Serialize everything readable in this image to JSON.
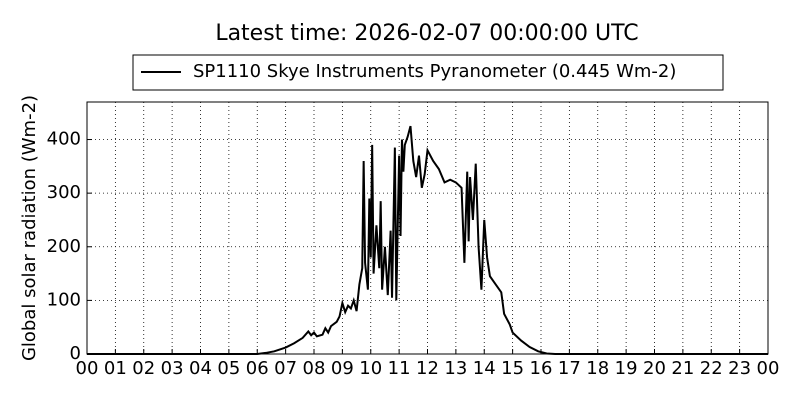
{
  "chart_data": {
    "type": "line",
    "title": "Latest time: 2026-02-07 00:00:00 UTC",
    "y_label": "Global solar radiation (Wm-2)",
    "xlim": [
      0,
      24
    ],
    "ylim": [
      0,
      470
    ],
    "xticks": [
      {
        "value": 0,
        "label": "00"
      },
      {
        "value": 1,
        "label": "01"
      },
      {
        "value": 2,
        "label": "02"
      },
      {
        "value": 3,
        "label": "03"
      },
      {
        "value": 4,
        "label": "04"
      },
      {
        "value": 5,
        "label": "05"
      },
      {
        "value": 6,
        "label": "06"
      },
      {
        "value": 7,
        "label": "07"
      },
      {
        "value": 8,
        "label": "08"
      },
      {
        "value": 9,
        "label": "09"
      },
      {
        "value": 10,
        "label": "10"
      },
      {
        "value": 11,
        "label": "11"
      },
      {
        "value": 12,
        "label": "12"
      },
      {
        "value": 13,
        "label": "13"
      },
      {
        "value": 14,
        "label": "14"
      },
      {
        "value": 15,
        "label": "15"
      },
      {
        "value": 16,
        "label": "16"
      },
      {
        "value": 17,
        "label": "17"
      },
      {
        "value": 18,
        "label": "18"
      },
      {
        "value": 19,
        "label": "19"
      },
      {
        "value": 20,
        "label": "20"
      },
      {
        "value": 21,
        "label": "21"
      },
      {
        "value": 22,
        "label": "22"
      },
      {
        "value": 23,
        "label": "23"
      },
      {
        "value": 24,
        "label": "00"
      }
    ],
    "yticks": [
      0,
      100,
      200,
      300,
      400
    ],
    "grid": true,
    "legend": "top",
    "x": [
      0,
      6,
      6.3,
      6.6,
      7,
      7.3,
      7.6,
      7.8,
      7.9,
      8.0,
      8.1,
      8.3,
      8.4,
      8.5,
      8.6,
      8.8,
      8.9,
      9.0,
      9.1,
      9.2,
      9.3,
      9.4,
      9.5,
      9.6,
      9.7,
      9.75,
      9.8,
      9.9,
      9.95,
      10.0,
      10.05,
      10.1,
      10.2,
      10.3,
      10.35,
      10.4,
      10.5,
      10.6,
      10.7,
      10.75,
      10.85,
      10.9,
      11.0,
      11.05,
      11.1,
      11.15,
      11.2,
      11.3,
      11.4,
      11.5,
      11.6,
      11.7,
      11.8,
      11.9,
      12.0,
      12.2,
      12.4,
      12.6,
      12.8,
      13.0,
      13.2,
      13.3,
      13.4,
      13.45,
      13.5,
      13.6,
      13.7,
      13.8,
      13.9,
      14.0,
      14.1,
      14.2,
      14.4,
      14.6,
      14.7,
      14.9,
      15.0,
      15.3,
      15.6,
      15.9,
      16.2,
      16.5,
      24
    ],
    "series": [
      {
        "name": "SP1110 Skye Instruments Pyranometer (0.445 Wm-2)",
        "color": "#000000",
        "values": [
          0,
          0,
          2,
          5,
          12,
          20,
          30,
          42,
          35,
          40,
          33,
          36,
          48,
          40,
          52,
          60,
          70,
          95,
          78,
          90,
          85,
          100,
          80,
          130,
          160,
          360,
          170,
          120,
          290,
          180,
          390,
          150,
          240,
          160,
          285,
          120,
          200,
          110,
          230,
          105,
          385,
          100,
          370,
          220,
          400,
          340,
          390,
          405,
          425,
          360,
          330,
          370,
          310,
          335,
          380,
          360,
          345,
          320,
          325,
          320,
          310,
          170,
          340,
          210,
          330,
          250,
          355,
          200,
          120,
          250,
          180,
          145,
          130,
          115,
          75,
          55,
          40,
          25,
          13,
          5,
          1,
          0,
          0
        ]
      }
    ]
  }
}
